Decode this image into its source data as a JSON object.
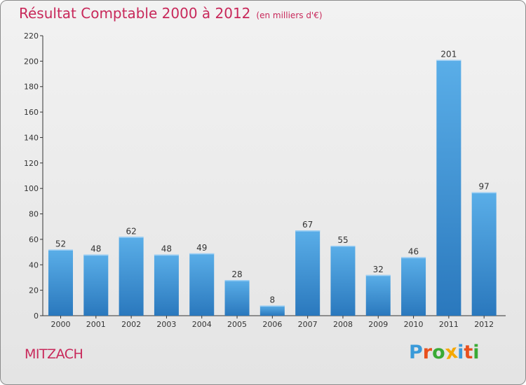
{
  "chart_data": {
    "type": "bar",
    "title": "Résultat Comptable 2000 à 2012",
    "subtitle": "(en milliers d'€)",
    "xlabel": "",
    "ylabel": "",
    "categories": [
      "2000",
      "2001",
      "2002",
      "2003",
      "2004",
      "2005",
      "2006",
      "2007",
      "2008",
      "2009",
      "2010",
      "2011",
      "2012"
    ],
    "values": [
      52,
      48,
      62,
      48,
      49,
      28,
      8,
      67,
      55,
      32,
      46,
      201,
      97
    ],
    "ylim": [
      0,
      220
    ],
    "yticks": [
      0,
      20,
      40,
      60,
      80,
      100,
      120,
      140,
      160,
      180,
      200,
      220
    ],
    "grid": false,
    "bar_color": "#3a8fd6"
  },
  "place_name": "MITZACH",
  "logo": {
    "letters": [
      "P",
      "r",
      "o",
      "x",
      "i",
      "t",
      "i"
    ],
    "colors": [
      "#3a9ad9",
      "#e8501e",
      "#3aaa35",
      "#f5a800",
      "#3a9ad9",
      "#e8501e",
      "#3aaa35"
    ]
  },
  "colors": {
    "title": "#c8285a",
    "axis": "#333333"
  }
}
